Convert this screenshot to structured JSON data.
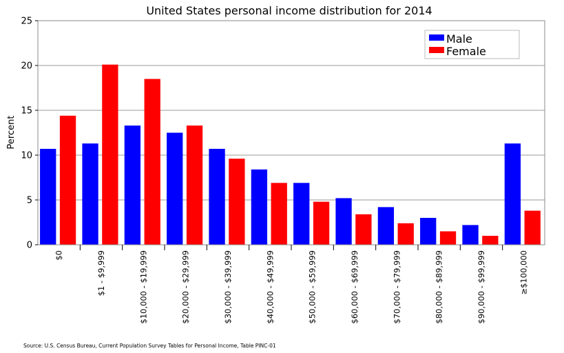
{
  "chart_data": {
    "type": "bar",
    "title": "United States personal income distribution for 2014",
    "xlabel": "",
    "ylabel": "Percent",
    "ylim": [
      0,
      25
    ],
    "yticks": [
      0,
      5,
      10,
      15,
      20,
      25
    ],
    "grid": true,
    "legend_position": "top-right",
    "categories": [
      "$0",
      "$1 - $9,999",
      "$10,000 - $19,999",
      "$20,000 - $29,999",
      "$30,000 - $39,999",
      "$40,000 - $49,999",
      "$50,000 - $59,999",
      "$60,000 - $69,999",
      "$70,000 - $79,999",
      "$80,000 - $89,999",
      "$90,000 - $99,999",
      "≥$100,000"
    ],
    "series": [
      {
        "name": "Male",
        "color": "#0000ff",
        "values": [
          10.7,
          11.3,
          13.3,
          12.5,
          10.7,
          8.4,
          6.9,
          5.2,
          4.2,
          3.0,
          2.2,
          11.3
        ]
      },
      {
        "name": "Female",
        "color": "#ff0000",
        "values": [
          14.4,
          20.1,
          18.5,
          13.3,
          9.6,
          6.9,
          4.8,
          3.4,
          2.4,
          1.5,
          1.0,
          3.8
        ]
      }
    ],
    "source": "Source: U.S. Census Bureau, Current Population Survey Tables for Personal Income, Table PINC-01"
  }
}
